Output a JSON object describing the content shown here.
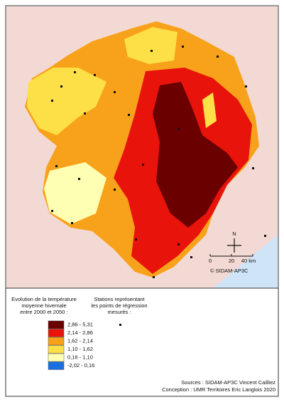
{
  "legend": {
    "title_lines": [
      "Evolution de la température",
      "moyenne hivernale",
      "entre 2000 et 2050  :"
    ],
    "classes": [
      {
        "label": "2,86 - 5,31",
        "color": "#6b0000"
      },
      {
        "label": "2,14 - 2,86",
        "color": "#e8140c"
      },
      {
        "label": "1,62 - 2,14",
        "color": "#f7a21a"
      },
      {
        "label": "1,10 - 1,62",
        "color": "#fde047"
      },
      {
        "label": "0,16 - 1,10",
        "color": "#ffffb4"
      },
      {
        "label": "-2,02 - 0,16",
        "color": "#1a6fe0"
      }
    ],
    "stations_lines": [
      "Stations représentant",
      "les points de régression",
      "mesurés :"
    ]
  },
  "map": {
    "north": "N",
    "scale_labels": [
      "0",
      "20",
      "40 km"
    ],
    "copyright": "© SIDAM-AP3C"
  },
  "footer": {
    "sources": "Sources : SIDAM-AP3C Vincent Cailliez",
    "conception": "Conception : UMR Territoires Eric Langlois  2020"
  }
}
